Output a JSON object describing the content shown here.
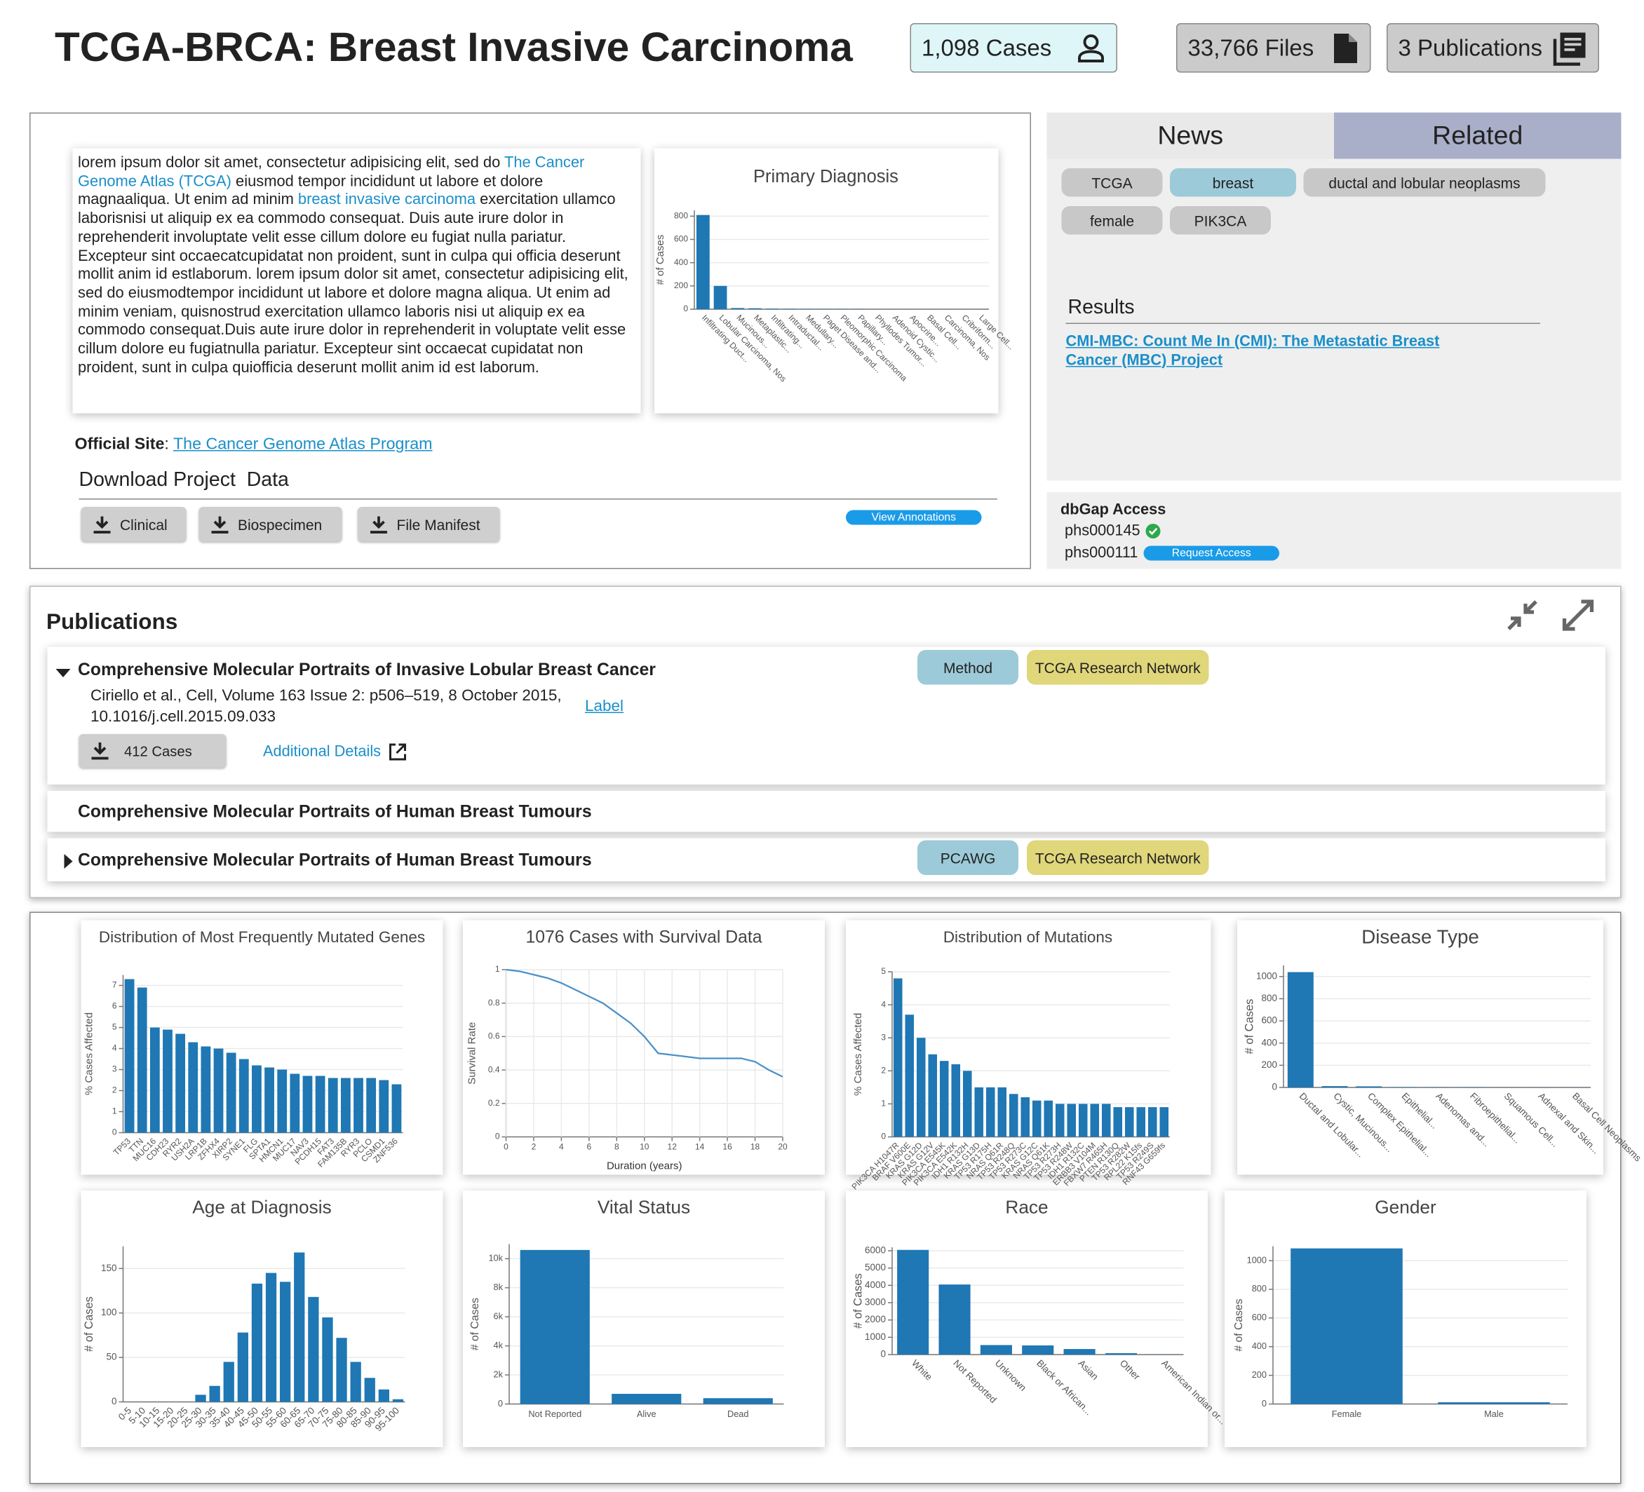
{
  "header": {
    "title": "TCGA-BRCA: Breast Invasive Carcinoma",
    "cases": "1,098 Cases",
    "files": "33,766 Files",
    "publications": "3 Publications"
  },
  "summary": {
    "text_1": "lorem ipsum dolor sit amet, consectetur adipisicing elit, sed do ",
    "link_1": "The Cancer Genome Atlas (TCGA)",
    "text_2": " eiusmod tempor incididunt ut labore et dolore magnaaliqua. Ut enim ad minim ",
    "link_2": "breast invasive carcinoma",
    "text_3": " exercitation ullamco laborisnisi ut aliquip ex ea commodo consequat. Duis aute irure dolor in reprehenderit involuptate velit esse cillum dolore eu fugiat nulla pariatur. Excepteur sint occaecatcupidatat non proident, sunt in culpa qui officia deserunt mollit anim id estlaborum. lorem ipsum dolor sit amet, consectetur adipisicing elit, sed do eiusmodtempor incididunt ut labore et dolore magna aliqua. Ut enim ad minim veniam, quisnostrud exercitation ullamco laboris nisi ut aliquip ex ea commodo consequat.Duis aute irure dolor in reprehenderit in voluptate velit esse cillum dolore eu fugiatnulla pariatur. Excepteur sint occaecat cupidatat non proident, sunt in culpa quiofficia deserunt mollit anim id est laborum."
  },
  "official_site": {
    "label": "Official Site",
    "separator": ":",
    "link": "The Cancer Genome Atlas Program"
  },
  "download": {
    "title": "Download Project  Data",
    "buttons": [
      "Clinical",
      "Biospecimen",
      "File Manifest"
    ],
    "annotations": "View Annotations"
  },
  "tabs": [
    "News",
    "Related"
  ],
  "tags": [
    "TCGA",
    "breast",
    "ductal and lobular neoplasms",
    "female",
    "PIK3CA"
  ],
  "results": {
    "title": "Results",
    "link_line_1": "CMI-MBC: Count Me In (CMI): The Metastatic Breast",
    "link_line_2": "Cancer (MBC) Project"
  },
  "dbgap": {
    "title": "dbGap Access",
    "studies": [
      {
        "id": "phs000145"
      },
      {
        "id": "phs000111",
        "action": "Request Access"
      }
    ]
  },
  "publications": {
    "title": "Publications",
    "items": [
      {
        "title": "Comprehensive Molecular Portraits of Invasive Lobular Breast Cancer",
        "citation_1": "Ciriello et al., Cell, Volume 163 Issue 2: p506–519, 8 October 2015,",
        "citation_2": "10.1016/j.cell.2015.09.033",
        "label": "Label",
        "tags": [
          "Method",
          "TCGA Research Network"
        ],
        "download": "412 Cases",
        "details": "Additional Details"
      },
      {
        "title": "Comprehensive Molecular Portraits of Human Breast Tumours"
      },
      {
        "title": "Comprehensive Molecular Portraits of Human Breast Tumours",
        "tags": [
          "PCAWG",
          "TCGA Research Network"
        ]
      }
    ]
  },
  "chart_data": [
    {
      "type": "bar",
      "title": "Primary Diagnosis",
      "y_label": "# of Cases",
      "color": "#1f77b4",
      "categories": [
        "Infiltrating Duct...",
        "Lobular Carcinoma, Nos",
        "Mucinous...",
        "Metaplastic...",
        "Infiltrating...",
        "Intraductal...",
        "Medullary...",
        "Paget Disease and...",
        "Pleomorphic Carcinoma",
        "Papillary...",
        "Phyllodes Tumor...",
        "Adenoid Cystic...",
        "Apocrine...",
        "Basal Cell...",
        "Carcinoma, Nos",
        "Cribriform...",
        "Large Cell..."
      ],
      "values": [
        810,
        200,
        10,
        8,
        5,
        4,
        3,
        2,
        2,
        2,
        1,
        1,
        1,
        1,
        1,
        1,
        1
      ],
      "ylim": [
        0,
        850
      ],
      "yticks": [
        0,
        200,
        400,
        600,
        800
      ],
      "grid": true
    },
    {
      "type": "bar",
      "title": "Distribution of Most Frequently Mutated Genes",
      "y_label": "% Cases Affected",
      "color": "#1f77b4",
      "categories": [
        "TP53",
        "TTN",
        "MUC16",
        "CDH23",
        "RYR2",
        "USH2A",
        "LRP1B",
        "ZFHX4",
        "XIRP2",
        "SYNE1",
        "FLG",
        "SPTA1",
        "HMCN1",
        "MUC17",
        "NAV3",
        "PCDH15",
        "FAT3",
        "FAM135B",
        "RYR3",
        "PCLO",
        "CSMD1",
        "ZNF536"
      ],
      "values": [
        7.3,
        6.9,
        5.0,
        4.9,
        4.7,
        4.3,
        4.1,
        4.0,
        3.8,
        3.5,
        3.2,
        3.1,
        3.0,
        2.8,
        2.7,
        2.7,
        2.6,
        2.6,
        2.6,
        2.6,
        2.5,
        2.3
      ],
      "ylim": [
        0,
        7.5
      ],
      "yticks": [
        0,
        1,
        2,
        3,
        4,
        5,
        6,
        7
      ],
      "grid": true
    },
    {
      "type": "line",
      "title": "1076 Cases with Survival Data",
      "y_label": "Survival Rate",
      "x_label": "Duration (years)",
      "color": "#4a90c8",
      "x": [
        0,
        1,
        2,
        3,
        4,
        5,
        6,
        7,
        8,
        9,
        10,
        11,
        12,
        13,
        14,
        15,
        16,
        17,
        18,
        19,
        20
      ],
      "values": [
        1.0,
        0.99,
        0.97,
        0.95,
        0.92,
        0.88,
        0.84,
        0.8,
        0.74,
        0.68,
        0.6,
        0.5,
        0.49,
        0.48,
        0.47,
        0.47,
        0.47,
        0.47,
        0.45,
        0.4,
        0.36
      ],
      "xlim": [
        0,
        20
      ],
      "xticks": [
        0,
        2,
        4,
        6,
        8,
        10,
        12,
        14,
        16,
        18,
        20
      ],
      "ylim": [
        0,
        1
      ],
      "yticks": [
        0,
        0.2,
        0.4,
        0.6,
        0.8,
        1
      ],
      "grid": true
    },
    {
      "type": "bar",
      "title": "Distribution of Mutations",
      "y_label": "% Cases Affected",
      "color": "#1f77b4",
      "categories": [
        "PIK3CA H1047R",
        "BRAF V600E",
        "KRAS G12D",
        "KRAS G12V",
        "PIK3CA E545K",
        "PIK3CA E542K",
        "IDH1 R132H",
        "KRAS G13D",
        "TP53 R175H",
        "NRAS Q61R",
        "TP53 R248Q",
        "TP53 R273C",
        "KRAS G12C",
        "NRAS Q61K",
        "TP53 R273H",
        "TP53 R248W",
        "IDH1 R132C",
        "ERBB3 V104M",
        "FBXW7 R465H",
        "PTEN R130Q",
        "TP53 R282W",
        "RPL22 K15fs",
        "TP53 R249S",
        "RNF43 G659fs"
      ],
      "values": [
        4.8,
        3.7,
        3.0,
        2.5,
        2.3,
        2.2,
        2.0,
        1.5,
        1.5,
        1.5,
        1.3,
        1.2,
        1.1,
        1.1,
        1.0,
        1.0,
        1.0,
        1.0,
        1.0,
        0.9,
        0.9,
        0.9,
        0.9,
        0.9
      ],
      "ylim": [
        0,
        5
      ],
      "yticks": [
        0,
        1,
        2,
        3,
        4,
        5
      ],
      "grid": true
    },
    {
      "type": "bar",
      "title": "Disease Type",
      "y_label": "# of Cases",
      "color": "#1f77b4",
      "categories": [
        "Ductal and Lobular...",
        "Cystic, Mucinous...",
        "Complex Epithelial...",
        "Epithelial...",
        "Adenomas and...",
        "Fibroepithelial...",
        "Squamous Cell...",
        "Adnexal and Skin...",
        "Basal Cell Neoplasms"
      ],
      "values": [
        1040,
        12,
        10,
        3,
        2,
        2,
        1,
        1,
        1
      ],
      "ylim": [
        0,
        1100
      ],
      "yticks": [
        0,
        200,
        400,
        600,
        800,
        1000
      ],
      "grid": true
    },
    {
      "type": "bar",
      "title": "Age at Diagnosis",
      "y_label": "# of Cases",
      "color": "#1f77b4",
      "categories": [
        "0-5",
        "5-10",
        "10-15",
        "15-20",
        "20-25",
        "25-30",
        "30-35",
        "35-40",
        "40-45",
        "45-50",
        "50-55",
        "55-60",
        "60-65",
        "65-70",
        "70-75",
        "75-80",
        "80-85",
        "85-90",
        "90-95",
        "95-100"
      ],
      "values": [
        0,
        0,
        0,
        0,
        0,
        8,
        18,
        45,
        78,
        133,
        145,
        135,
        168,
        118,
        95,
        72,
        45,
        27,
        14,
        3
      ],
      "ylim": [
        0,
        175
      ],
      "yticks": [
        0,
        50,
        100,
        150
      ],
      "grid": true
    },
    {
      "type": "bar",
      "title": "Vital Status",
      "y_label": "# of Cases",
      "color": "#1f77b4",
      "categories": [
        "Not Reported",
        "Alive",
        "Dead"
      ],
      "values": [
        10600,
        700,
        400
      ],
      "ylim": [
        0,
        11000
      ],
      "yticks": [
        0,
        {
          "value": 2000,
          "label": "2k"
        },
        {
          "value": 4000,
          "label": "4k"
        },
        {
          "value": 6000,
          "label": "6k"
        },
        {
          "value": 8000,
          "label": "8k"
        },
        {
          "value": 10000,
          "label": "10k"
        }
      ],
      "grid": true
    },
    {
      "type": "bar",
      "title": "Race",
      "y_label": "# of Cases",
      "color": "#1f77b4",
      "categories": [
        "White",
        "Not Reported",
        "Unknown",
        "Black or African...",
        "Asian",
        "Other",
        "American Indian or..."
      ],
      "values": [
        6050,
        4050,
        550,
        530,
        320,
        80,
        10
      ],
      "ylim": [
        0,
        6200
      ],
      "yticks": [
        0,
        1000,
        2000,
        3000,
        4000,
        5000,
        6000
      ],
      "grid": true
    },
    {
      "type": "bar",
      "title": "Gender",
      "y_label": "# of Cases",
      "color": "#1f77b4",
      "categories": [
        "Female",
        "Male"
      ],
      "values": [
        1085,
        12
      ],
      "ylim": [
        0,
        1100
      ],
      "yticks": [
        0,
        200,
        400,
        600,
        800,
        1000
      ],
      "grid": true
    }
  ]
}
